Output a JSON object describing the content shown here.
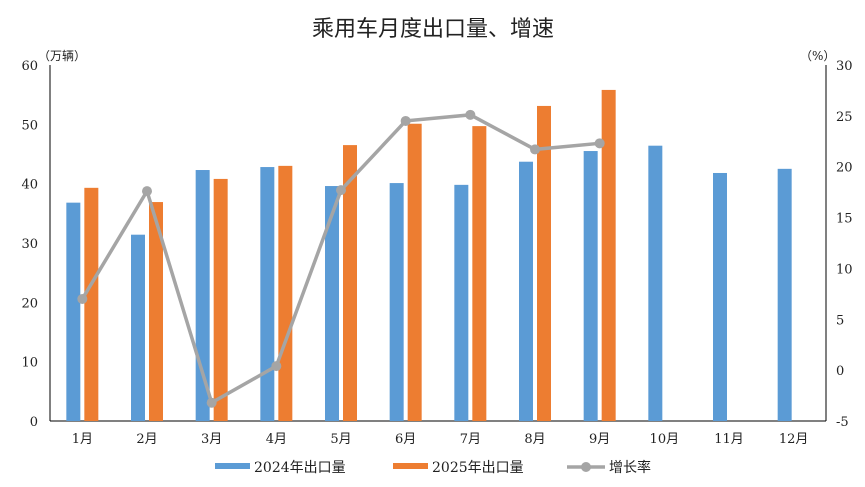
{
  "chart_data": {
    "type": "bar",
    "title": "乘用车月度出口量、增速",
    "ylabel_left": "（万辆）",
    "ylabel_right": "（%）",
    "categories": [
      "1月",
      "2月",
      "3月",
      "4月",
      "5月",
      "6月",
      "7月",
      "8月",
      "9月",
      "10月",
      "11月",
      "12月"
    ],
    "ylim_left": [
      0,
      60
    ],
    "yticks_left": [
      0,
      10,
      20,
      30,
      40,
      50,
      60
    ],
    "ylim_right": [
      -5,
      30
    ],
    "yticks_right": [
      -5,
      0,
      5,
      10,
      15,
      20,
      25,
      30
    ],
    "grid": false,
    "legend_position": "bottom",
    "series": [
      {
        "name": "2024年出口量",
        "type": "bar",
        "axis": "left",
        "color": "#5B9BD5",
        "values": [
          36.8,
          31.4,
          42.3,
          42.8,
          39.6,
          40.1,
          39.8,
          43.7,
          45.5,
          46.4,
          41.8,
          42.5
        ]
      },
      {
        "name": "2025年出口量",
        "type": "bar",
        "axis": "left",
        "color": "#ED7D31",
        "values": [
          39.3,
          36.9,
          40.8,
          43.0,
          46.5,
          50.1,
          49.7,
          53.1,
          55.8,
          null,
          null,
          null
        ]
      },
      {
        "name": "增长率",
        "type": "line",
        "axis": "right",
        "color": "#A5A5A5",
        "values": [
          7.0,
          17.6,
          -3.2,
          0.4,
          17.7,
          24.5,
          25.1,
          21.7,
          22.3,
          null,
          null,
          null
        ]
      }
    ]
  }
}
